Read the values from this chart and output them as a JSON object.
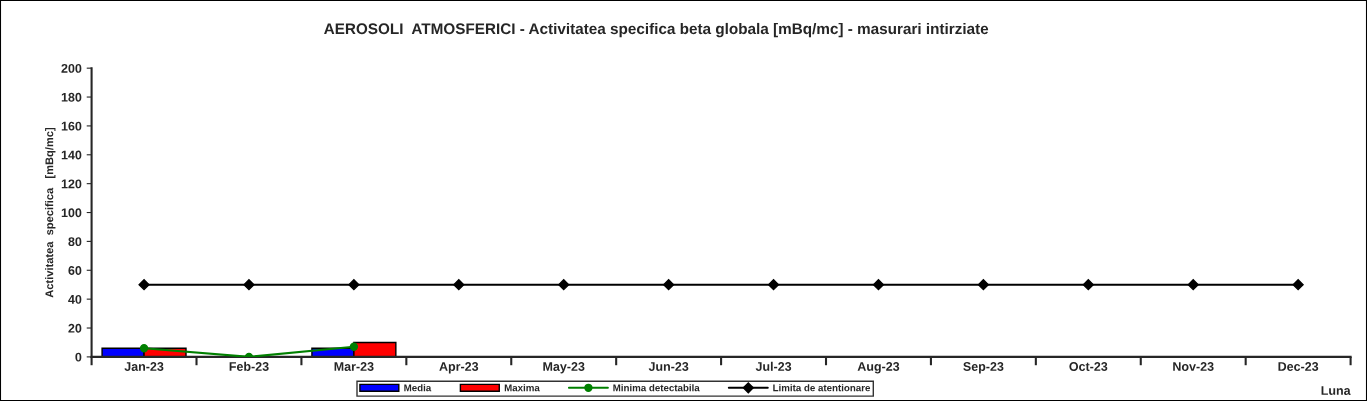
{
  "chart_data": {
    "type": "bar",
    "title": "AEROSOLI  ATMOSFERICI - Activitatea specifica beta globala [mBq/mc] - masurari intirziate",
    "xlabel": "Luna",
    "ylabel": "Activitatea  specifica   [mBq/mc]",
    "categories": [
      "Jan-23",
      "Feb-23",
      "Mar-23",
      "Apr-23",
      "May-23",
      "Jun-23",
      "Jul-23",
      "Aug-23",
      "Sep-23",
      "Oct-23",
      "Nov-23",
      "Dec-23"
    ],
    "series": [
      {
        "name": "Media",
        "color": "#0000ff",
        "values": [
          6,
          null,
          6,
          null,
          null,
          null,
          null,
          null,
          null,
          null,
          null,
          null
        ]
      },
      {
        "name": "Maxima",
        "color": "#ff0000",
        "values": [
          6,
          null,
          10,
          null,
          null,
          null,
          null,
          null,
          null,
          null,
          null,
          null
        ]
      },
      {
        "name": "Minima detectabila",
        "type": "line",
        "color": "#008000",
        "marker": "circle",
        "values": [
          6,
          0,
          7,
          null,
          null,
          null,
          null,
          null,
          null,
          null,
          null,
          null
        ]
      },
      {
        "name": "Limita de atentionare",
        "type": "line",
        "color": "#000000",
        "marker": "diamond",
        "values": [
          50,
          50,
          50,
          50,
          50,
          50,
          50,
          50,
          50,
          50,
          50,
          50
        ]
      }
    ],
    "ylim": [
      0,
      200
    ],
    "yticks": [
      0,
      20,
      40,
      60,
      80,
      100,
      120,
      140,
      160,
      180,
      200
    ],
    "grid": false,
    "legend": "bottom"
  }
}
